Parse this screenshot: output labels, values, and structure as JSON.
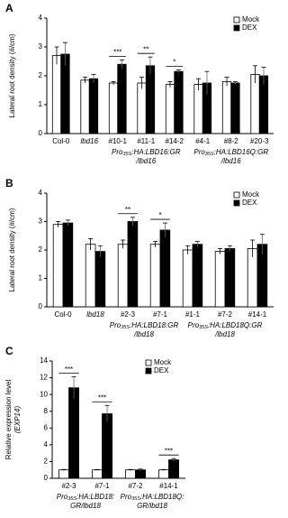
{
  "chart_data": [
    {
      "type": "bar",
      "panel": "A",
      "y_label": [
        "Lateral root density (#/cm)"
      ],
      "categories": [
        "Col-0",
        "lbd16",
        "#10-1",
        "#11-1",
        "#14-2",
        "#4-1",
        "#8-2",
        "#20-3"
      ],
      "series": [
        {
          "name": "Mock",
          "color": "#ffffff",
          "values": [
            2.7,
            1.85,
            1.75,
            1.75,
            1.7,
            1.7,
            1.8,
            2.05
          ],
          "errors": [
            0.3,
            0.1,
            0.05,
            0.2,
            0.1,
            0.2,
            0.15,
            0.3
          ]
        },
        {
          "name": "DEX",
          "color": "#000000",
          "values": [
            2.75,
            1.9,
            2.4,
            2.35,
            2.15,
            1.75,
            1.75,
            2.0
          ],
          "errors": [
            0.4,
            0.15,
            0.15,
            0.3,
            0.05,
            0.4,
            0.05,
            0.3
          ]
        }
      ],
      "significance": [
        null,
        null,
        "***",
        "**",
        "*",
        null,
        null,
        null
      ],
      "groups": [
        {
          "prefix": "Pro",
          "sub": "35S",
          "rest": ":HA:LBD16:GR",
          "line2": "/lbd16",
          "members": [
            "#10-1",
            "#11-1",
            "#14-2"
          ]
        },
        {
          "prefix": "Pro",
          "sub": "35S",
          "rest": ":HA:LBD16Q:GR",
          "line2": "/lbd16",
          "members": [
            "#4-1",
            "#8-2",
            "#20-3"
          ]
        }
      ],
      "ylim": [
        0,
        4
      ],
      "yticks": [
        0,
        1,
        2,
        3,
        4
      ],
      "legend": "upper right"
    },
    {
      "type": "bar",
      "panel": "B",
      "y_label": [
        "Lateral root density (#/cm)"
      ],
      "categories": [
        "Col-0",
        "lbd18",
        "#2-3",
        "#7-1",
        "#1-1",
        "#7-2",
        "#14-1"
      ],
      "series": [
        {
          "name": "Mock",
          "color": "#ffffff",
          "values": [
            2.9,
            2.2,
            2.2,
            2.2,
            2.0,
            1.95,
            2.05
          ],
          "errors": [
            0.1,
            0.2,
            0.15,
            0.1,
            0.15,
            0.1,
            0.3
          ]
        },
        {
          "name": "DEX",
          "color": "#000000",
          "values": [
            2.95,
            1.95,
            3.0,
            2.7,
            2.2,
            2.05,
            2.2
          ],
          "errors": [
            0.1,
            0.2,
            0.15,
            0.25,
            0.1,
            0.1,
            0.35
          ]
        }
      ],
      "significance": [
        null,
        null,
        "**",
        "*",
        null,
        null,
        null
      ],
      "groups": [
        {
          "prefix": "Pro",
          "sub": "35S",
          "rest": ":HA:LBD18:GR",
          "line2": "/lbd18",
          "members": [
            "#2-3",
            "#7-1"
          ]
        },
        {
          "prefix": "Pro",
          "sub": "35S",
          "rest": ":HA:LBD18Q:GR",
          "line2": "/lbd18",
          "members": [
            "#1-1",
            "#7-2",
            "#14-1"
          ]
        }
      ],
      "ylim": [
        0,
        4
      ],
      "yticks": [
        0,
        1,
        2,
        3,
        4
      ],
      "legend": "upper right"
    },
    {
      "type": "bar",
      "panel": "C",
      "y_label": [
        "Relative expression level",
        "(EXP14)"
      ],
      "categories": [
        "#2-3",
        "#7-1",
        "#7-2",
        "#14-1"
      ],
      "series": [
        {
          "name": "Mock",
          "color": "#ffffff",
          "values": [
            1,
            1,
            1,
            1
          ],
          "errors": [
            0.05,
            0.05,
            0.05,
            0.05
          ]
        },
        {
          "name": "DEX",
          "color": "#000000",
          "values": [
            10.8,
            7.7,
            1.0,
            2.2
          ],
          "errors": [
            1.3,
            1.0,
            0.1,
            0.15
          ]
        }
      ],
      "significance": [
        "***",
        "***",
        null,
        "***"
      ],
      "groups": [
        {
          "prefix": "Pro",
          "sub": "35S",
          "rest": ":HA:LBD18:",
          "line2": "GR/lbd18",
          "members": [
            "#2-3",
            "#7-1"
          ]
        },
        {
          "prefix": "Pro",
          "sub": "35S",
          "rest": ":HA:LBD18Q:",
          "line2": "GR/lbd18",
          "members": [
            "#7-2",
            "#14-1"
          ]
        }
      ],
      "ylim": [
        0,
        14
      ],
      "yticks": [
        0,
        2,
        4,
        6,
        8,
        10,
        12,
        14
      ],
      "legend": "upper right"
    }
  ]
}
